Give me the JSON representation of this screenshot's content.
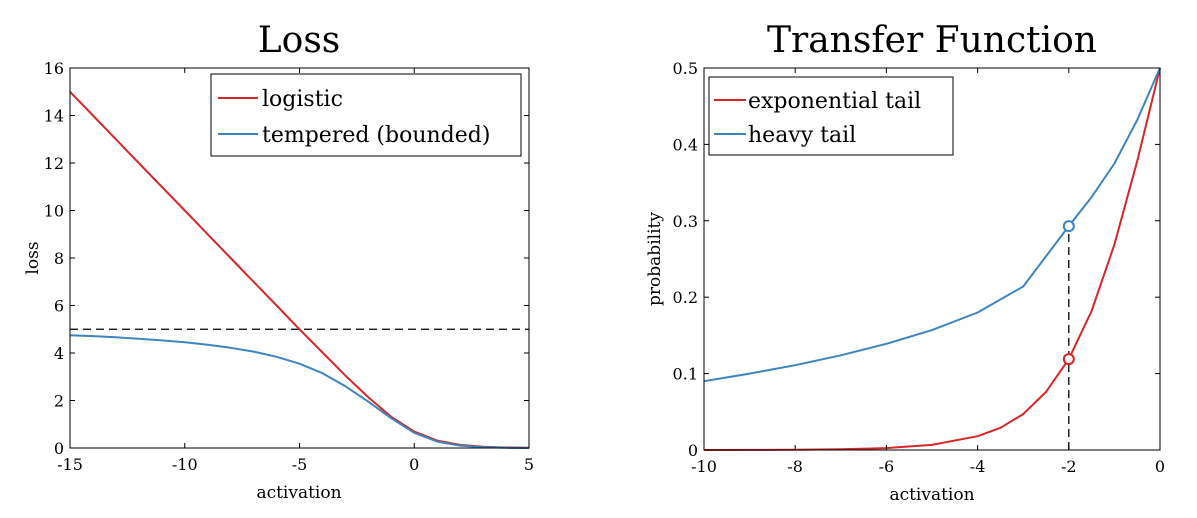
{
  "chart_data": [
    {
      "type": "line",
      "title": "Loss",
      "xlabel": "activation",
      "ylabel": "loss",
      "xlim": [
        -15,
        5
      ],
      "ylim": [
        0,
        16
      ],
      "xticks": [
        -15,
        -10,
        -5,
        0,
        5
      ],
      "yticks": [
        0,
        2,
        4,
        6,
        8,
        10,
        12,
        14,
        16
      ],
      "legend_position": "top-right",
      "series": [
        {
          "name": "logistic",
          "color": "#d62728",
          "x": [
            -15,
            -14,
            -13,
            -12,
            -11,
            -10,
            -9,
            -8,
            -7,
            -6,
            -5,
            -4,
            -3,
            -2,
            -1,
            0,
            1,
            2,
            3,
            4,
            5
          ],
          "y": [
            15.0,
            14.0,
            13.0,
            12.0,
            11.0,
            10.0,
            9.0,
            8.0,
            7.0,
            6.0,
            5.0,
            4.02,
            3.05,
            2.13,
            1.31,
            0.69,
            0.31,
            0.13,
            0.05,
            0.02,
            0.01
          ]
        },
        {
          "name": "tempered (bounded)",
          "color": "#3e84bf",
          "x": [
            -15,
            -14,
            -13,
            -12,
            -11,
            -10,
            -9,
            -8,
            -7,
            -6,
            -5,
            -4,
            -3,
            -2,
            -1,
            0,
            1,
            2,
            3,
            4,
            5
          ],
          "y": [
            4.75,
            4.71,
            4.66,
            4.6,
            4.53,
            4.45,
            4.35,
            4.22,
            4.06,
            3.84,
            3.55,
            3.15,
            2.6,
            1.95,
            1.25,
            0.64,
            0.27,
            0.1,
            0.04,
            0.01,
            0.0
          ]
        }
      ],
      "reference_line": {
        "y": 5,
        "style": "dashed",
        "color": "#000000"
      }
    },
    {
      "type": "line",
      "title": "Transfer Function",
      "xlabel": "activation",
      "ylabel": "probability",
      "xlim": [
        -10,
        0
      ],
      "ylim": [
        0,
        0.5
      ],
      "xticks": [
        -10,
        -8,
        -6,
        -4,
        -2,
        0
      ],
      "yticks": [
        0,
        0.1,
        0.2,
        0.3,
        0.4,
        0.5
      ],
      "legend_position": "top-left",
      "series": [
        {
          "name": "exponential tail",
          "color": "#d62728",
          "x": [
            -10,
            -9,
            -8,
            -7,
            -6,
            -5,
            -4,
            -3.5,
            -3,
            -2.5,
            -2,
            -1.5,
            -1,
            -0.5,
            0
          ],
          "y": [
            0.0,
            0.0001,
            0.0003,
            0.0009,
            0.0025,
            0.0067,
            0.018,
            0.029,
            0.047,
            0.076,
            0.119,
            0.182,
            0.269,
            0.378,
            0.5
          ]
        },
        {
          "name": "heavy tail",
          "color": "#3e84bf",
          "x": [
            -10,
            -9,
            -8,
            -7,
            -6,
            -5,
            -4,
            -3,
            -2,
            -1.5,
            -1,
            -0.5,
            0
          ],
          "y": [
            0.09,
            0.1,
            0.111,
            0.124,
            0.139,
            0.157,
            0.18,
            0.214,
            0.293,
            0.331,
            0.375,
            0.432,
            0.5
          ]
        }
      ],
      "markers": [
        {
          "x": -2,
          "y": 0.293,
          "color": "#3e84bf"
        },
        {
          "x": -2,
          "y": 0.119,
          "color": "#d62728"
        }
      ],
      "reference_line": {
        "x": -2,
        "from_y": 0,
        "to_y": 0.293,
        "style": "dashed",
        "color": "#000000"
      }
    }
  ]
}
